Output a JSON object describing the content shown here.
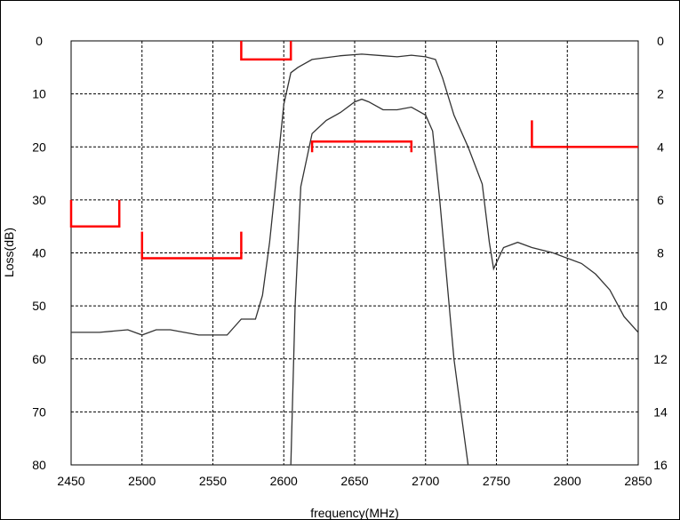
{
  "chart_data": {
    "type": "line",
    "title": "",
    "xlabel": "frequency(MHz)",
    "ylabel": "Loss(dB)",
    "xlim": [
      2450,
      2850
    ],
    "ylim": [
      0,
      80
    ],
    "y2lim": [
      0,
      16
    ],
    "y_inverted": true,
    "grid": true,
    "x_ticks": [
      "2450",
      "2500",
      "2550",
      "2600",
      "2650",
      "2700",
      "2750",
      "2800",
      "2850"
    ],
    "y_ticks": [
      "0",
      "10",
      "20",
      "30",
      "40",
      "50",
      "60",
      "70",
      "80"
    ],
    "y2_ticks": [
      "0",
      "2",
      "4",
      "6",
      "8",
      "10",
      "12",
      "14",
      "16"
    ],
    "colors": {
      "response": "#333333",
      "mask": "#ff0000",
      "grid": "#000000"
    },
    "series": [
      {
        "axis": "left",
        "x": [
          2450,
          2470,
          2490,
          2500,
          2510,
          2520,
          2540,
          2560,
          2570,
          2580,
          2585,
          2590,
          2595,
          2600,
          2605,
          2610,
          2620,
          2640,
          2655,
          2670,
          2680,
          2690,
          2700,
          2707,
          2712,
          2720,
          2730,
          2740,
          2745,
          2748,
          2755,
          2765,
          2775,
          2790,
          2800,
          2810,
          2820,
          2830,
          2840,
          2850
        ],
        "y": [
          55,
          55,
          54.5,
          55.5,
          54.5,
          54.5,
          55.5,
          55.5,
          52.5,
          52.5,
          48,
          38,
          25,
          12,
          6,
          5,
          3.5,
          2.8,
          2.5,
          2.8,
          3,
          2.7,
          3,
          3.5,
          7,
          14,
          20,
          27,
          38,
          43,
          39,
          38,
          39,
          40,
          41,
          42,
          44,
          47,
          52,
          55
        ]
      },
      {
        "axis": "right",
        "x": [
          2605,
          2608,
          2612,
          2620,
          2630,
          2640,
          2650,
          2655,
          2660,
          2670,
          2680,
          2690,
          2700,
          2705,
          2710,
          2715,
          2720,
          2725,
          2730
        ],
        "y": [
          16,
          10,
          5.5,
          3.5,
          3,
          2.7,
          2.3,
          2.2,
          2.3,
          2.6,
          2.6,
          2.5,
          2.8,
          3.4,
          6,
          9,
          12,
          14,
          16
        ]
      }
    ],
    "mask_segments": [
      [
        [
          2450,
          30
        ],
        [
          2450,
          35
        ],
        [
          2484,
          35
        ],
        [
          2484,
          30
        ]
      ],
      [
        [
          2500,
          36
        ],
        [
          2500,
          41
        ],
        [
          2570,
          41
        ],
        [
          2570,
          36
        ]
      ],
      [
        [
          2570,
          0
        ],
        [
          2570,
          3.5
        ],
        [
          2605,
          3.5
        ],
        [
          2605,
          0
        ]
      ],
      [
        [
          2620,
          21
        ],
        [
          2620,
          19
        ],
        [
          2690,
          19
        ],
        [
          2690,
          21
        ]
      ],
      [
        [
          2775,
          15
        ],
        [
          2775,
          20
        ],
        [
          2850,
          20
        ]
      ]
    ]
  }
}
